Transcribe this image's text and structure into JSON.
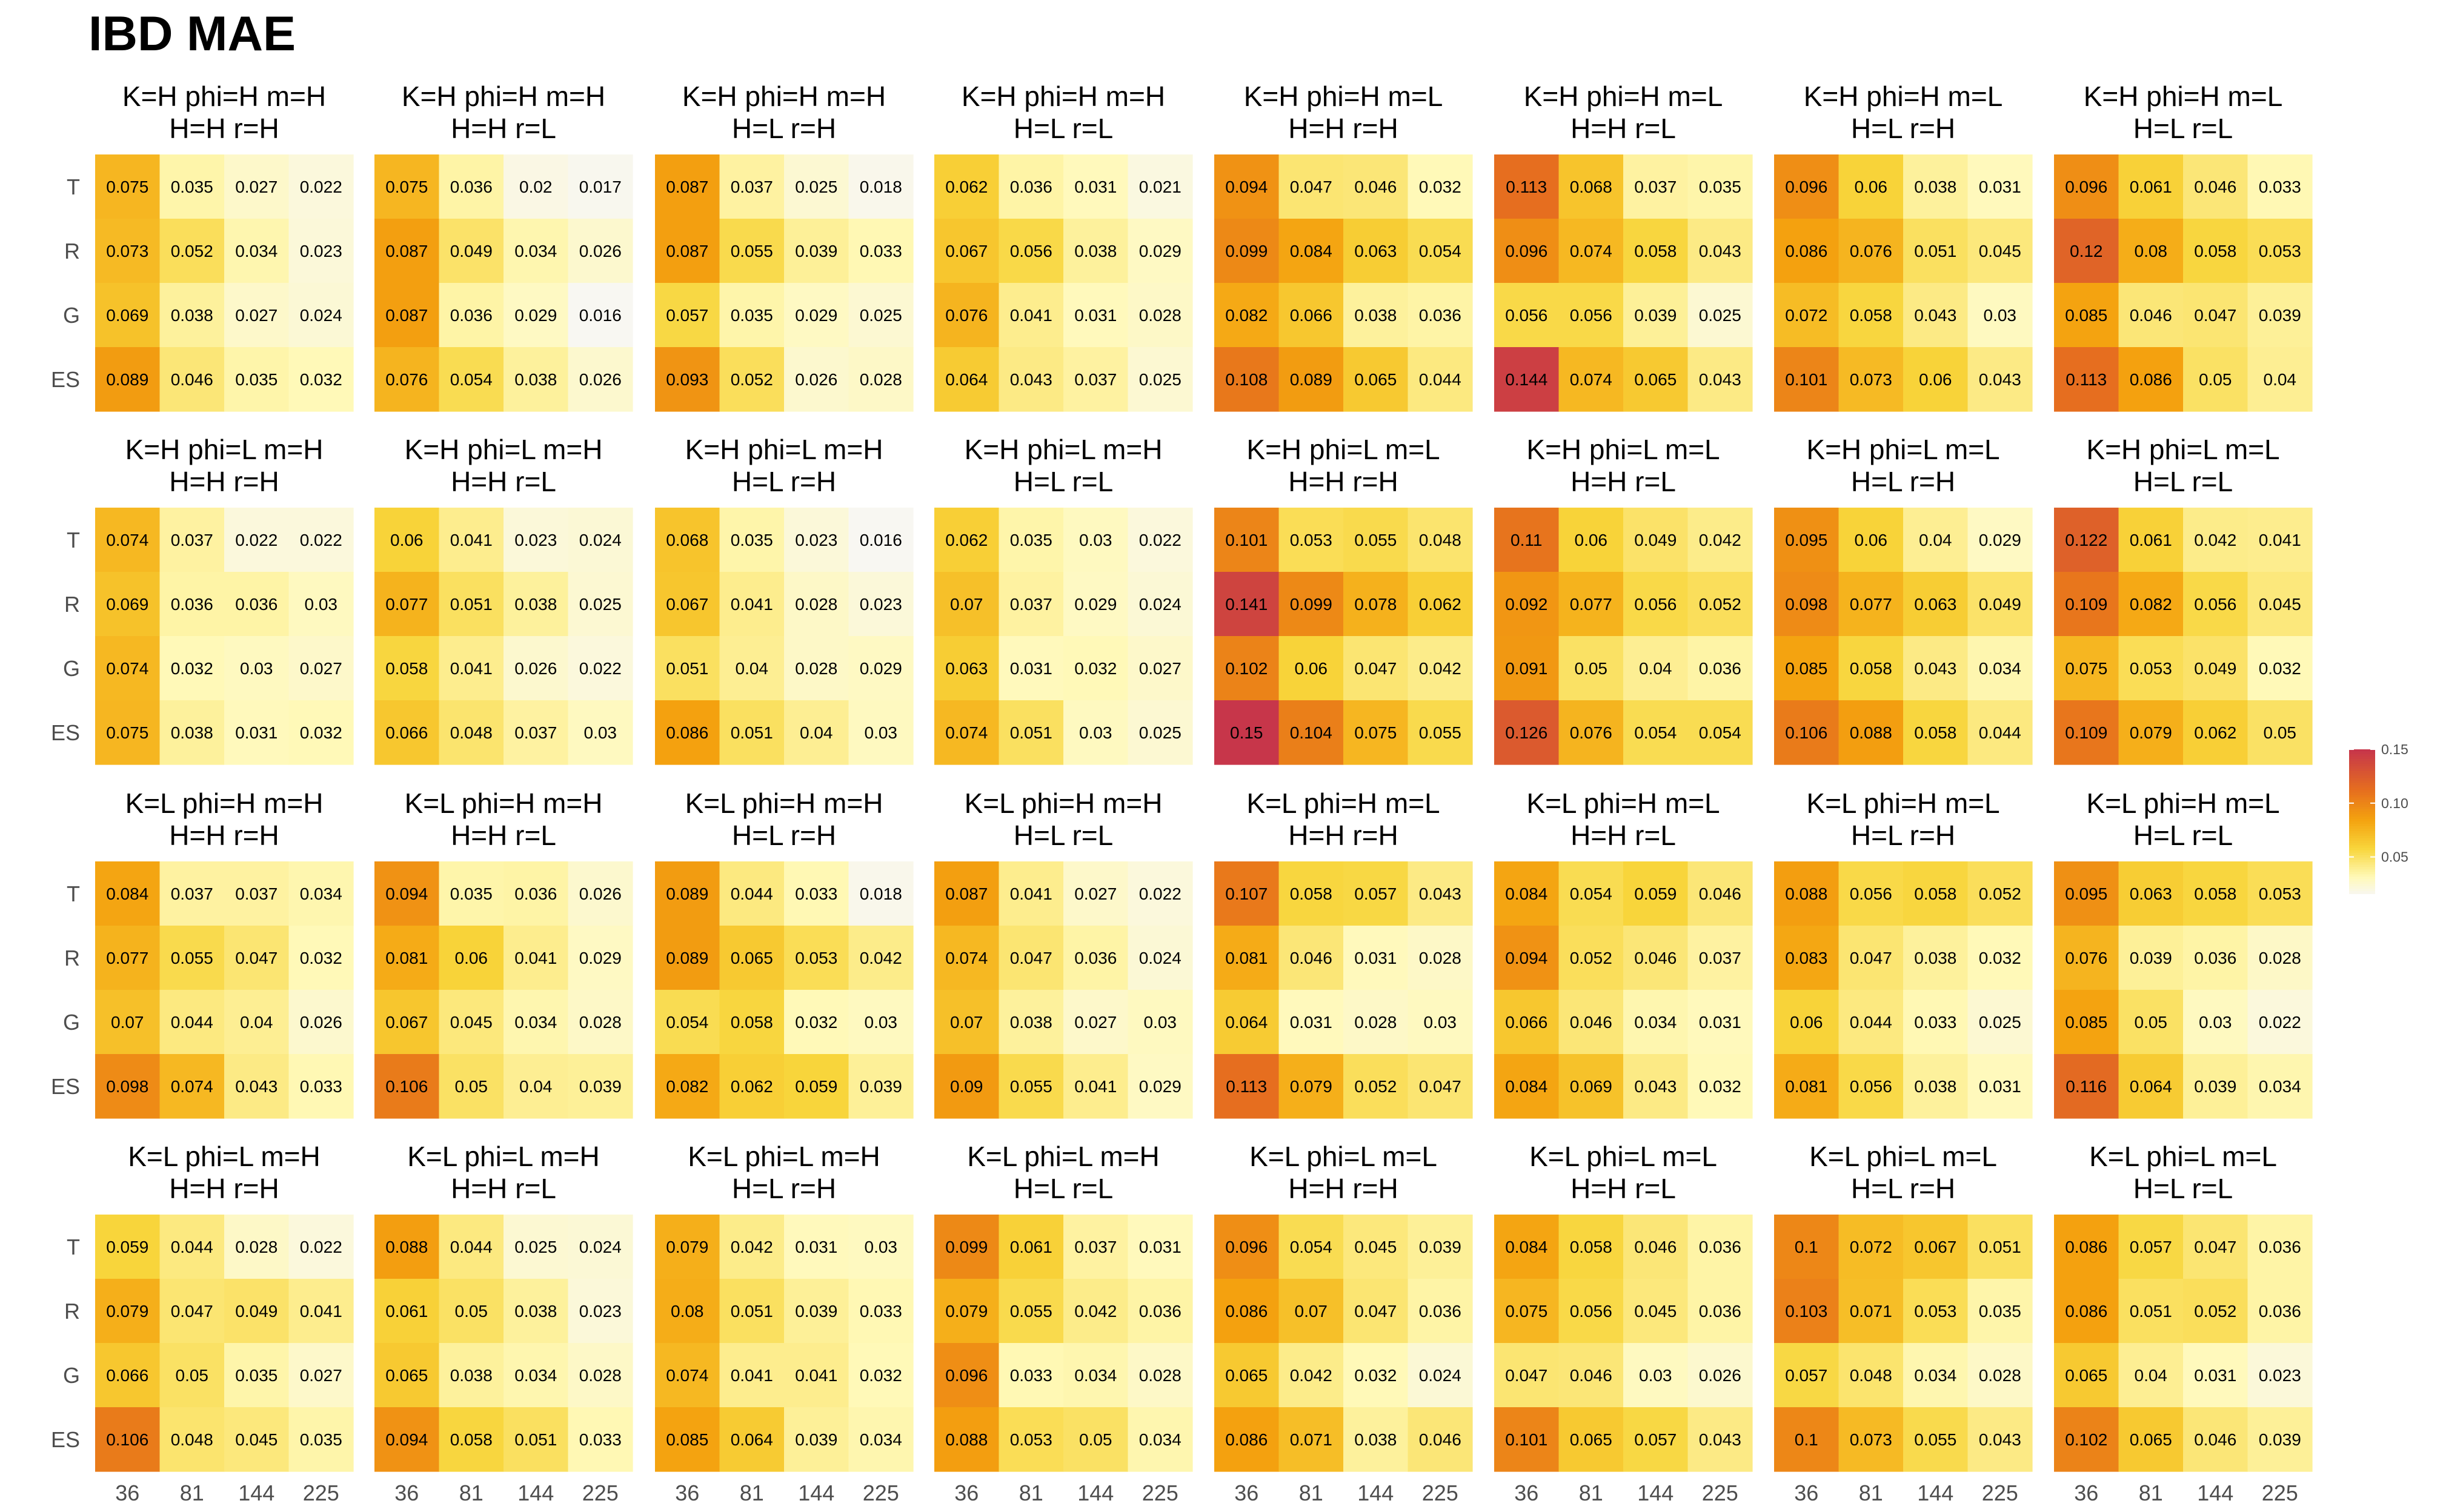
{
  "chart_data": {
    "type": "heatmap",
    "title": "IBD MAE",
    "rows": [
      "T",
      "R",
      "G",
      "ES"
    ],
    "columns": [
      "36",
      "81",
      "144",
      "225"
    ],
    "legend": {
      "ticks": [
        0.05,
        0.1,
        0.15
      ],
      "tick_labels": [
        "0.05",
        "0.10",
        "0.15"
      ],
      "range": [
        0.016,
        0.15
      ],
      "colors": [
        "#F8F7F2",
        "#FFF9B8",
        "#F8D53B",
        "#F4A20F",
        "#E66F1E",
        "#C7364A"
      ]
    },
    "panels": [
      {
        "title1": "K=H phi=H m=H",
        "title2": "H=H r=H",
        "values": [
          [
            0.075,
            0.035,
            0.027,
            0.022
          ],
          [
            0.073,
            0.052,
            0.034,
            0.023
          ],
          [
            0.069,
            0.038,
            0.027,
            0.024
          ],
          [
            0.089,
            0.046,
            0.035,
            0.032
          ]
        ]
      },
      {
        "title1": "K=H phi=H m=H",
        "title2": "H=H r=L",
        "values": [
          [
            0.075,
            0.036,
            0.02,
            0.017
          ],
          [
            0.087,
            0.049,
            0.034,
            0.026
          ],
          [
            0.087,
            0.036,
            0.029,
            0.016
          ],
          [
            0.076,
            0.054,
            0.038,
            0.026
          ]
        ]
      },
      {
        "title1": "K=H phi=H m=H",
        "title2": "H=L r=H",
        "values": [
          [
            0.087,
            0.037,
            0.025,
            0.018
          ],
          [
            0.087,
            0.055,
            0.039,
            0.033
          ],
          [
            0.057,
            0.035,
            0.029,
            0.025
          ],
          [
            0.093,
            0.052,
            0.026,
            0.028
          ]
        ]
      },
      {
        "title1": "K=H phi=H m=H",
        "title2": "H=L r=L",
        "values": [
          [
            0.062,
            0.036,
            0.031,
            0.021
          ],
          [
            0.067,
            0.056,
            0.038,
            0.029
          ],
          [
            0.076,
            0.041,
            0.031,
            0.028
          ],
          [
            0.064,
            0.043,
            0.037,
            0.025
          ]
        ]
      },
      {
        "title1": "K=H phi=H m=L",
        "title2": "H=H r=H",
        "values": [
          [
            0.094,
            0.047,
            0.046,
            0.032
          ],
          [
            0.099,
            0.084,
            0.063,
            0.054
          ],
          [
            0.082,
            0.066,
            0.038,
            0.036
          ],
          [
            0.108,
            0.089,
            0.065,
            0.044
          ]
        ]
      },
      {
        "title1": "K=H phi=H m=L",
        "title2": "H=H r=L",
        "values": [
          [
            0.113,
            0.068,
            0.037,
            0.035
          ],
          [
            0.096,
            0.074,
            0.058,
            0.043
          ],
          [
            0.056,
            0.056,
            0.039,
            0.025
          ],
          [
            0.144,
            0.074,
            0.065,
            0.043
          ]
        ]
      },
      {
        "title1": "K=H phi=H m=L",
        "title2": "H=L r=H",
        "values": [
          [
            0.096,
            0.06,
            0.038,
            0.031
          ],
          [
            0.086,
            0.076,
            0.051,
            0.045
          ],
          [
            0.072,
            0.058,
            0.043,
            0.03
          ],
          [
            0.101,
            0.073,
            0.06,
            0.043
          ]
        ]
      },
      {
        "title1": "K=H phi=H m=L",
        "title2": "H=L r=L",
        "values": [
          [
            0.096,
            0.061,
            0.046,
            0.033
          ],
          [
            0.12,
            0.08,
            0.058,
            0.053
          ],
          [
            0.085,
            0.046,
            0.047,
            0.039
          ],
          [
            0.113,
            0.086,
            0.05,
            0.04
          ]
        ]
      },
      {
        "title1": "K=H phi=L m=H",
        "title2": "H=H r=H",
        "values": [
          [
            0.074,
            0.037,
            0.022,
            0.022
          ],
          [
            0.069,
            0.036,
            0.036,
            0.03
          ],
          [
            0.074,
            0.032,
            0.03,
            0.027
          ],
          [
            0.075,
            0.038,
            0.031,
            0.032
          ]
        ]
      },
      {
        "title1": "K=H phi=L m=H",
        "title2": "H=H r=L",
        "values": [
          [
            0.06,
            0.041,
            0.023,
            0.024
          ],
          [
            0.077,
            0.051,
            0.038,
            0.025
          ],
          [
            0.058,
            0.041,
            0.026,
            0.022
          ],
          [
            0.066,
            0.048,
            0.037,
            0.03
          ]
        ]
      },
      {
        "title1": "K=H phi=L m=H",
        "title2": "H=L r=H",
        "values": [
          [
            0.068,
            0.035,
            0.023,
            0.016
          ],
          [
            0.067,
            0.041,
            0.028,
            0.023
          ],
          [
            0.051,
            0.04,
            0.028,
            0.029
          ],
          [
            0.086,
            0.051,
            0.04,
            0.03
          ]
        ]
      },
      {
        "title1": "K=H phi=L m=H",
        "title2": "H=L r=L",
        "values": [
          [
            0.062,
            0.035,
            0.03,
            0.022
          ],
          [
            0.07,
            0.037,
            0.029,
            0.024
          ],
          [
            0.063,
            0.031,
            0.032,
            0.027
          ],
          [
            0.074,
            0.051,
            0.03,
            0.025
          ]
        ]
      },
      {
        "title1": "K=H phi=L m=L",
        "title2": "H=H r=H",
        "values": [
          [
            0.101,
            0.053,
            0.055,
            0.048
          ],
          [
            0.141,
            0.099,
            0.078,
            0.062
          ],
          [
            0.102,
            0.06,
            0.047,
            0.042
          ],
          [
            0.15,
            0.104,
            0.075,
            0.055
          ]
        ]
      },
      {
        "title1": "K=H phi=L m=L",
        "title2": "H=H r=L",
        "values": [
          [
            0.11,
            0.06,
            0.049,
            0.042
          ],
          [
            0.092,
            0.077,
            0.056,
            0.052
          ],
          [
            0.091,
            0.05,
            0.04,
            0.036
          ],
          [
            0.126,
            0.076,
            0.054,
            0.054
          ]
        ]
      },
      {
        "title1": "K=H phi=L m=L",
        "title2": "H=L r=H",
        "values": [
          [
            0.095,
            0.06,
            0.04,
            0.029
          ],
          [
            0.098,
            0.077,
            0.063,
            0.049
          ],
          [
            0.085,
            0.058,
            0.043,
            0.034
          ],
          [
            0.106,
            0.088,
            0.058,
            0.044
          ]
        ]
      },
      {
        "title1": "K=H phi=L m=L",
        "title2": "H=L r=L",
        "values": [
          [
            0.122,
            0.061,
            0.042,
            0.041
          ],
          [
            0.109,
            0.082,
            0.056,
            0.045
          ],
          [
            0.075,
            0.053,
            0.049,
            0.032
          ],
          [
            0.109,
            0.079,
            0.062,
            0.05
          ]
        ]
      },
      {
        "title1": "K=L phi=H m=H",
        "title2": "H=H r=H",
        "values": [
          [
            0.084,
            0.037,
            0.037,
            0.034
          ],
          [
            0.077,
            0.055,
            0.047,
            0.032
          ],
          [
            0.07,
            0.044,
            0.04,
            0.026
          ],
          [
            0.098,
            0.074,
            0.043,
            0.033
          ]
        ]
      },
      {
        "title1": "K=L phi=H m=H",
        "title2": "H=H r=L",
        "values": [
          [
            0.094,
            0.035,
            0.036,
            0.026
          ],
          [
            0.081,
            0.06,
            0.041,
            0.029
          ],
          [
            0.067,
            0.045,
            0.034,
            0.028
          ],
          [
            0.106,
            0.05,
            0.04,
            0.039
          ]
        ]
      },
      {
        "title1": "K=L phi=H m=H",
        "title2": "H=L r=H",
        "values": [
          [
            0.089,
            0.044,
            0.033,
            0.018
          ],
          [
            0.089,
            0.065,
            0.053,
            0.042
          ],
          [
            0.054,
            0.058,
            0.032,
            0.03
          ],
          [
            0.082,
            0.062,
            0.059,
            0.039
          ]
        ]
      },
      {
        "title1": "K=L phi=H m=H",
        "title2": "H=L r=L",
        "values": [
          [
            0.087,
            0.041,
            0.027,
            0.022
          ],
          [
            0.074,
            0.047,
            0.036,
            0.024
          ],
          [
            0.07,
            0.038,
            0.027,
            0.03
          ],
          [
            0.09,
            0.055,
            0.041,
            0.029
          ]
        ]
      },
      {
        "title1": "K=L phi=H m=L",
        "title2": "H=H r=H",
        "values": [
          [
            0.107,
            0.058,
            0.057,
            0.043
          ],
          [
            0.081,
            0.046,
            0.031,
            0.028
          ],
          [
            0.064,
            0.031,
            0.028,
            0.03
          ],
          [
            0.113,
            0.079,
            0.052,
            0.047
          ]
        ]
      },
      {
        "title1": "K=L phi=H m=L",
        "title2": "H=H r=L",
        "values": [
          [
            0.084,
            0.054,
            0.059,
            0.046
          ],
          [
            0.094,
            0.052,
            0.046,
            0.037
          ],
          [
            0.066,
            0.046,
            0.034,
            0.031
          ],
          [
            0.084,
            0.069,
            0.043,
            0.032
          ]
        ]
      },
      {
        "title1": "K=L phi=H m=L",
        "title2": "H=L r=H",
        "values": [
          [
            0.088,
            0.056,
            0.058,
            0.052
          ],
          [
            0.083,
            0.047,
            0.038,
            0.032
          ],
          [
            0.06,
            0.044,
            0.033,
            0.025
          ],
          [
            0.081,
            0.056,
            0.038,
            0.031
          ]
        ]
      },
      {
        "title1": "K=L phi=H m=L",
        "title2": "H=L r=L",
        "values": [
          [
            0.095,
            0.063,
            0.058,
            0.053
          ],
          [
            0.076,
            0.039,
            0.036,
            0.028
          ],
          [
            0.085,
            0.05,
            0.03,
            0.022
          ],
          [
            0.116,
            0.064,
            0.039,
            0.034
          ]
        ]
      },
      {
        "title1": "K=L phi=L m=H",
        "title2": "H=H r=H",
        "values": [
          [
            0.059,
            0.044,
            0.028,
            0.022
          ],
          [
            0.079,
            0.047,
            0.049,
            0.041
          ],
          [
            0.066,
            0.05,
            0.035,
            0.027
          ],
          [
            0.106,
            0.048,
            0.045,
            0.035
          ]
        ]
      },
      {
        "title1": "K=L phi=L m=H",
        "title2": "H=H r=L",
        "values": [
          [
            0.088,
            0.044,
            0.025,
            0.024
          ],
          [
            0.061,
            0.05,
            0.038,
            0.023
          ],
          [
            0.065,
            0.038,
            0.034,
            0.028
          ],
          [
            0.094,
            0.058,
            0.051,
            0.033
          ]
        ]
      },
      {
        "title1": "K=L phi=L m=H",
        "title2": "H=L r=H",
        "values": [
          [
            0.079,
            0.042,
            0.031,
            0.03
          ],
          [
            0.08,
            0.051,
            0.039,
            0.033
          ],
          [
            0.074,
            0.041,
            0.041,
            0.032
          ],
          [
            0.085,
            0.064,
            0.039,
            0.034
          ]
        ]
      },
      {
        "title1": "K=L phi=L m=H",
        "title2": "H=L r=L",
        "values": [
          [
            0.099,
            0.061,
            0.037,
            0.031
          ],
          [
            0.079,
            0.055,
            0.042,
            0.036
          ],
          [
            0.096,
            0.033,
            0.034,
            0.028
          ],
          [
            0.088,
            0.053,
            0.05,
            0.034
          ]
        ]
      },
      {
        "title1": "K=L phi=L m=L",
        "title2": "H=H r=H",
        "values": [
          [
            0.096,
            0.054,
            0.045,
            0.039
          ],
          [
            0.086,
            0.07,
            0.047,
            0.036
          ],
          [
            0.065,
            0.042,
            0.032,
            0.024
          ],
          [
            0.086,
            0.071,
            0.038,
            0.046
          ]
        ]
      },
      {
        "title1": "K=L phi=L m=L",
        "title2": "H=H r=L",
        "values": [
          [
            0.084,
            0.058,
            0.046,
            0.036
          ],
          [
            0.075,
            0.056,
            0.045,
            0.036
          ],
          [
            0.047,
            0.046,
            0.03,
            0.026
          ],
          [
            0.101,
            0.065,
            0.057,
            0.043
          ]
        ]
      },
      {
        "title1": "K=L phi=L m=L",
        "title2": "H=L r=H",
        "values": [
          [
            0.1,
            0.072,
            0.067,
            0.051
          ],
          [
            0.103,
            0.071,
            0.053,
            0.035
          ],
          [
            0.057,
            0.048,
            0.034,
            0.028
          ],
          [
            0.1,
            0.073,
            0.055,
            0.043
          ]
        ]
      },
      {
        "title1": "K=L phi=L m=L",
        "title2": "H=L r=L",
        "values": [
          [
            0.086,
            0.057,
            0.047,
            0.036
          ],
          [
            0.086,
            0.051,
            0.052,
            0.036
          ],
          [
            0.065,
            0.04,
            0.031,
            0.023
          ],
          [
            0.102,
            0.065,
            0.046,
            0.039
          ]
        ]
      }
    ]
  }
}
